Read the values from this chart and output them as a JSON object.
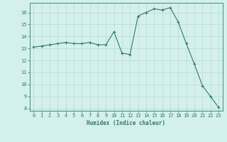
{
  "x": [
    0,
    1,
    2,
    3,
    4,
    5,
    6,
    7,
    8,
    9,
    10,
    11,
    12,
    13,
    14,
    15,
    16,
    17,
    18,
    19,
    20,
    21,
    22,
    23
  ],
  "y": [
    13.1,
    13.2,
    13.3,
    13.4,
    13.5,
    13.4,
    13.4,
    13.5,
    13.3,
    13.3,
    14.4,
    12.6,
    12.5,
    15.7,
    16.0,
    16.3,
    16.2,
    16.4,
    15.2,
    13.4,
    11.7,
    9.9,
    9.0,
    8.1
  ],
  "xlabel": "Humidex (Indice chaleur)",
  "xlim": [
    -0.5,
    23.5
  ],
  "ylim": [
    7.8,
    16.8
  ],
  "yticks": [
    8,
    9,
    10,
    11,
    12,
    13,
    14,
    15,
    16
  ],
  "xticks": [
    0,
    1,
    2,
    3,
    4,
    5,
    6,
    7,
    8,
    9,
    10,
    11,
    12,
    13,
    14,
    15,
    16,
    17,
    18,
    19,
    20,
    21,
    22,
    23
  ],
  "line_color": "#2d7a6e",
  "marker_color": "#2d7a6e",
  "bg_color": "#d4f0ec",
  "grid_color": "#b8d8d4",
  "label_color": "#2d7a6e",
  "tick_color": "#2d7a6e",
  "axis_color": "#2d7a6e",
  "label_fontsize": 5.5,
  "tick_fontsize": 5.0
}
